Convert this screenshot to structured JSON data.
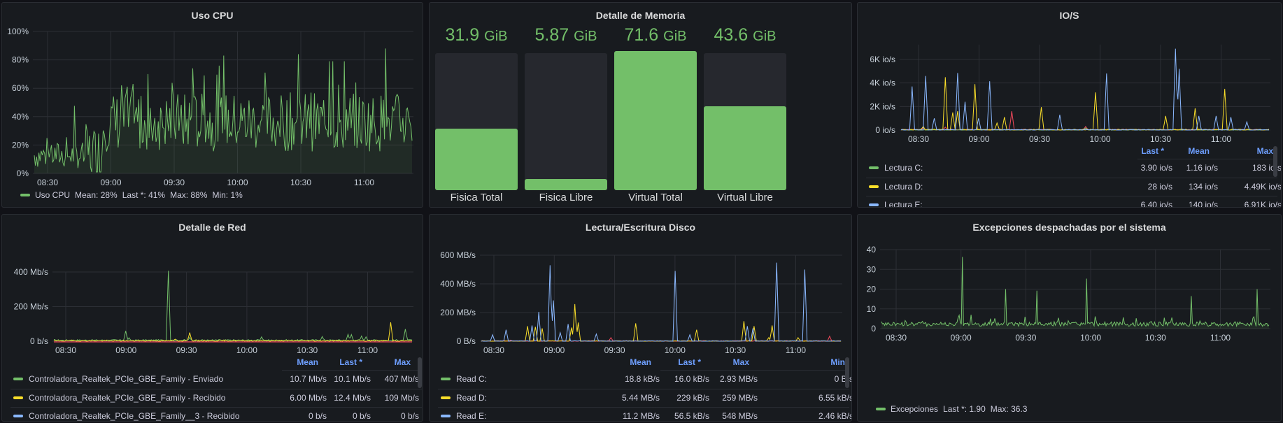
{
  "colors": {
    "green": "#73bf69",
    "yellow": "#fade2a",
    "blue": "#8ab8ff",
    "red": "#f2495c",
    "header": "#6e9fff"
  },
  "time_ticks": [
    "08:30",
    "09:00",
    "09:30",
    "10:00",
    "10:30",
    "11:00"
  ],
  "cpu": {
    "title": "Uso CPU",
    "legend": {
      "name": "Uso CPU",
      "mean": "Mean: 28%",
      "last": "Last *: 41%",
      "max": "Max: 88%",
      "min": "Min: 1%"
    },
    "chart_data": {
      "type": "area",
      "yticks": [
        "0%",
        "20%",
        "40%",
        "60%",
        "80%",
        "100%"
      ],
      "ylim": [
        0,
        100
      ],
      "series": [
        {
          "name": "Uso CPU",
          "mean": 28,
          "max": 88,
          "min": 1,
          "last": 41,
          "color": "#73bf69"
        }
      ]
    }
  },
  "memory": {
    "title": "Detalle de Memoria",
    "unit": "GiB",
    "gauges": [
      {
        "value": "31.9",
        "label": "Fisica Total",
        "fraction": 0.45
      },
      {
        "value": "5.87",
        "label": "Fisica Libre",
        "fraction": 0.08
      },
      {
        "value": "71.6",
        "label": "Virtual Total",
        "fraction": 1.0
      },
      {
        "value": "43.6",
        "label": "Virtual Libre",
        "fraction": 0.61
      }
    ]
  },
  "io": {
    "title": "IO/S",
    "chart_data": {
      "type": "line",
      "yticks": [
        "0 io/s",
        "2K io/s",
        "4K io/s",
        "6K io/s"
      ],
      "ylim": [
        0,
        7500
      ]
    },
    "headers": [
      "Mean",
      "Last *",
      "Max"
    ],
    "rows": [
      {
        "name": "Lectura C:",
        "color": "#73bf69",
        "values": [
          "1.16 io/s",
          "3.90 io/s",
          "183 io/s"
        ]
      },
      {
        "name": "Lectura D:",
        "color": "#fade2a",
        "values": [
          "134 io/s",
          "28 io/s",
          "4.49K io/s"
        ]
      },
      {
        "name": "Lectura E:",
        "color": "#8ab8ff",
        "values": [
          "140 io/s",
          "6.40 io/s",
          "6.91K io/s"
        ]
      }
    ]
  },
  "net": {
    "title": "Detalle de Red",
    "chart_data": {
      "type": "line",
      "yticks": [
        "0 b/s",
        "200 Mb/s",
        "400 Mb/s"
      ],
      "ylim": [
        0,
        400
      ]
    },
    "headers": [
      "Mean",
      "Last *",
      "Max"
    ],
    "rows": [
      {
        "name": "Controladora_Realtek_PCIe_GBE_Family - Enviado",
        "color": "#73bf69",
        "values": [
          "10.7 Mb/s",
          "10.1 Mb/s",
          "407 Mb/s"
        ]
      },
      {
        "name": "Controladora_Realtek_PCIe_GBE_Family - Recibido",
        "color": "#fade2a",
        "values": [
          "6.00 Mb/s",
          "12.4 Mb/s",
          "109 Mb/s"
        ]
      },
      {
        "name": "Controladora_Realtek_PCIe_GBE_Family__3 - Recibido",
        "color": "#8ab8ff",
        "values": [
          "0 b/s",
          "0 b/s",
          "0 b/s"
        ]
      }
    ]
  },
  "disk": {
    "title": "Lectura/Escritura Disco",
    "chart_data": {
      "type": "line",
      "yticks": [
        "0 B/s",
        "200 MB/s",
        "400 MB/s",
        "600 MB/s"
      ],
      "ylim": [
        0,
        600
      ]
    },
    "headers": [
      "Mean",
      "Last *",
      "Max",
      "Min"
    ],
    "rows": [
      {
        "name": "Read C:",
        "color": "#73bf69",
        "values": [
          "18.8 kB/s",
          "16.0 kB/s",
          "2.93 MB/s",
          "0 B/s"
        ]
      },
      {
        "name": "Read D:",
        "color": "#fade2a",
        "values": [
          "5.44 MB/s",
          "229 kB/s",
          "259 MB/s",
          "6.55 kB/s"
        ]
      },
      {
        "name": "Read E:",
        "color": "#8ab8ff",
        "values": [
          "11.2 MB/s",
          "56.5 kB/s",
          "548 MB/s",
          "2.46 kB/s"
        ]
      }
    ]
  },
  "exc": {
    "title": "Excepciones despachadas por el sistema",
    "legend": {
      "name": "Excepciones",
      "last": "Last *: 1.90",
      "max": "Max: 36.3"
    },
    "chart_data": {
      "type": "line",
      "yticks": [
        "0",
        "10",
        "20",
        "30",
        "40"
      ],
      "ylim": [
        0,
        40
      ],
      "series": [
        {
          "name": "Excepciones",
          "last": 1.9,
          "max": 36.3,
          "color": "#73bf69"
        }
      ]
    }
  }
}
